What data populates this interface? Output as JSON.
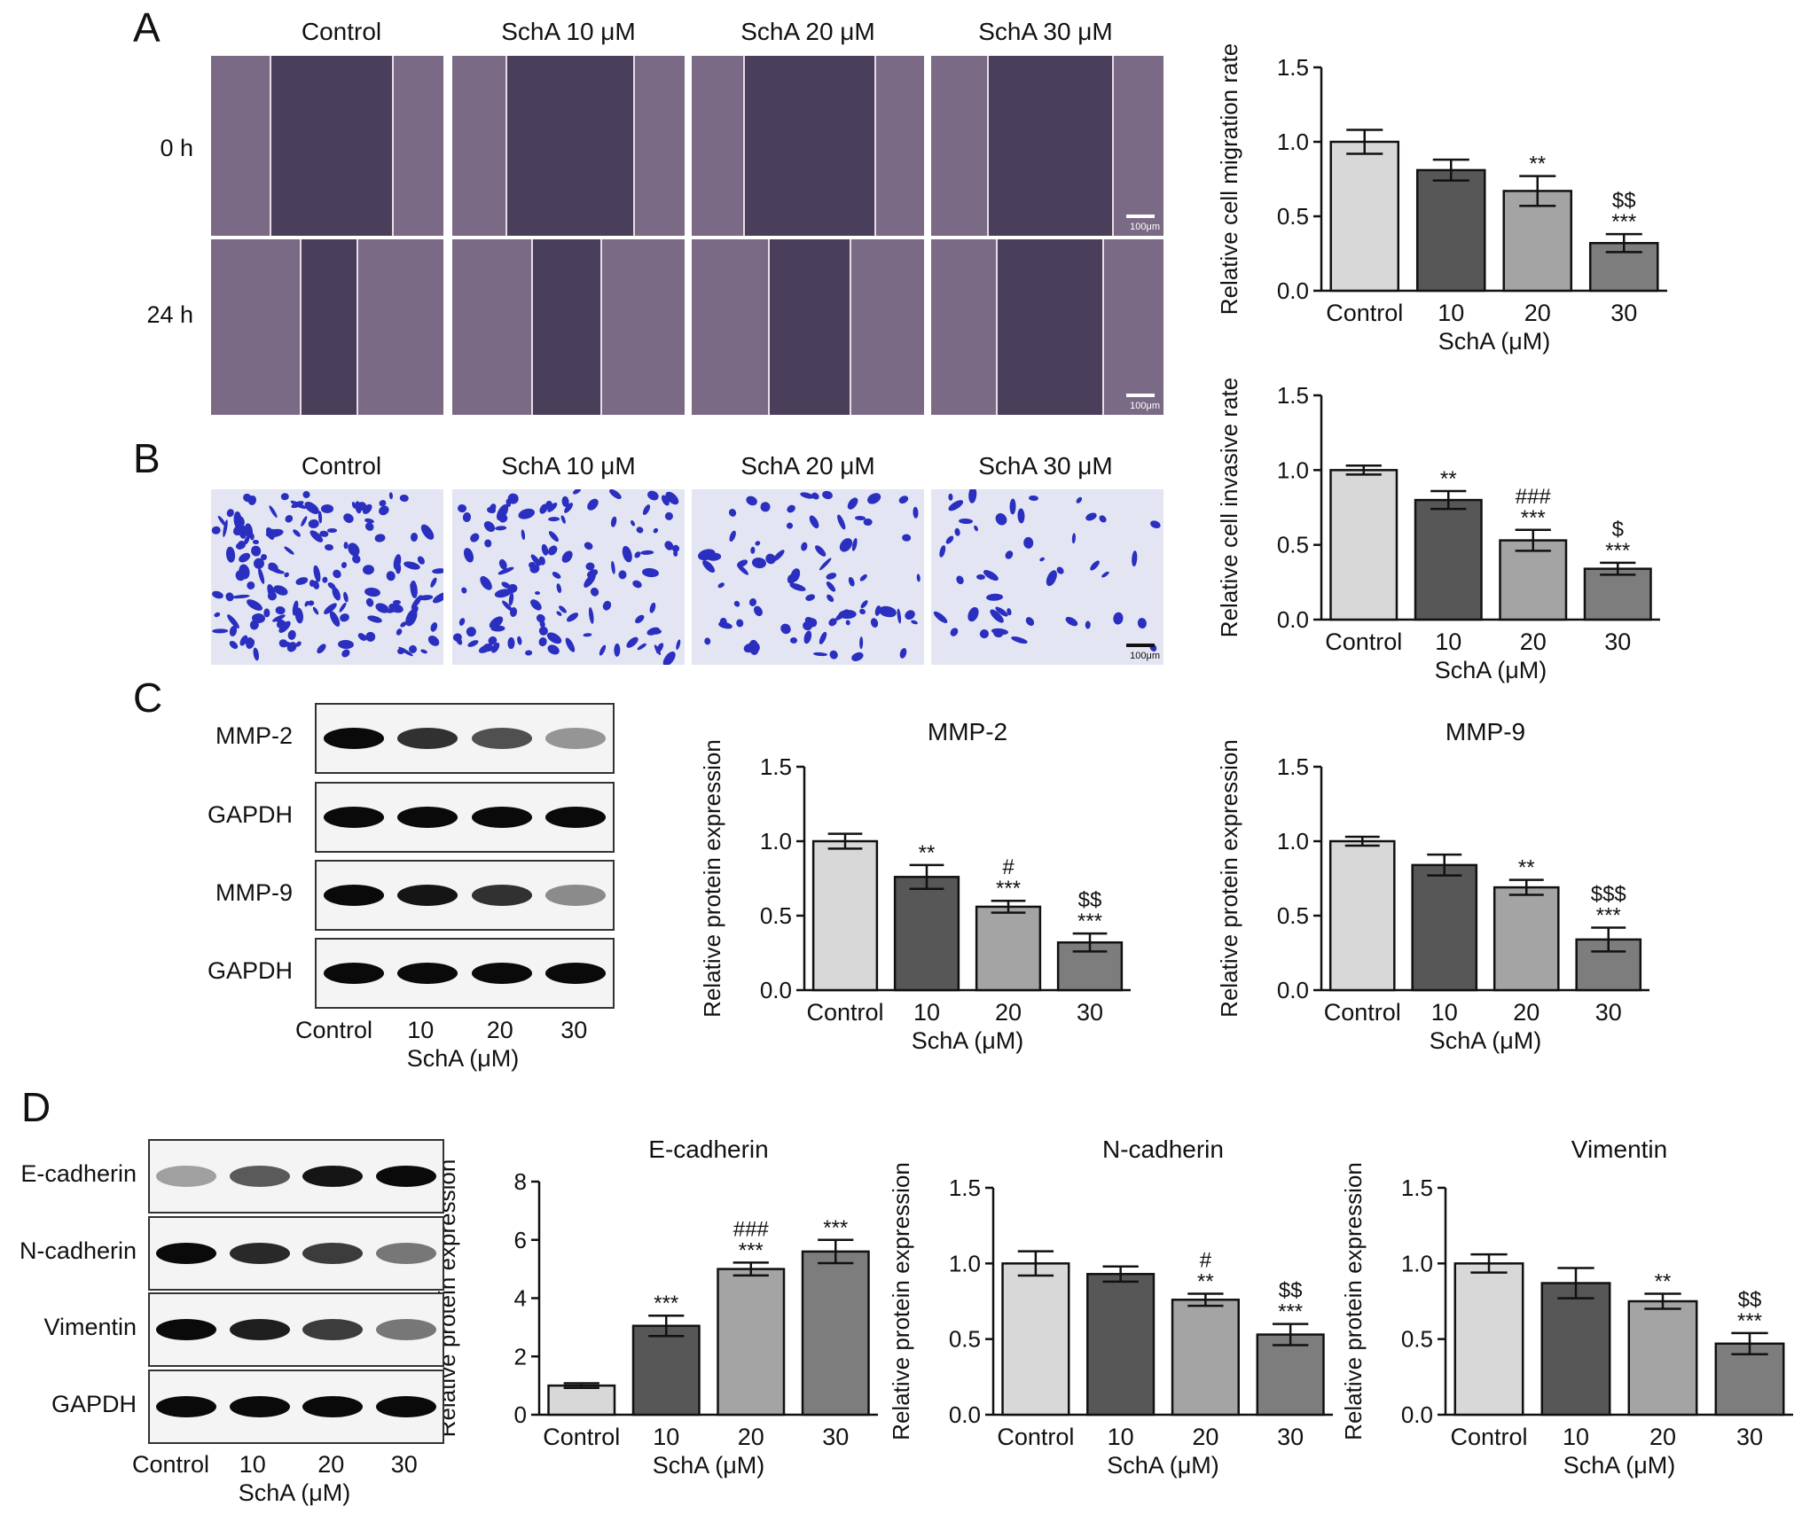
{
  "colors": {
    "control": "#d8d8d8",
    "dose10": "#575757",
    "dose20": "#a4a4a4",
    "dose30": "#7d7d7d",
    "wound_gap": "#4a3f5a",
    "wound_cells": "#7a6a86",
    "transwell_bg": "#e3e6f2",
    "transwell_cells": "#2a2fc0"
  },
  "panels": {
    "A": {
      "letter": "A",
      "columns": [
        "Control",
        "SchA 10 μM",
        "SchA 20 μM",
        "SchA 30 μM"
      ],
      "rows": [
        "0 h",
        "24 h"
      ],
      "scale_bar": "100μm"
    },
    "B": {
      "letter": "B",
      "columns": [
        "Control",
        "SchA 10 μM",
        "SchA 20 μM",
        "SchA 30 μM"
      ],
      "scale_bar": "100μm"
    },
    "C": {
      "letter": "C",
      "blot_rows": [
        "MMP-2",
        "GAPDH",
        "MMP-9",
        "GAPDH"
      ],
      "blot_band_intensity": [
        [
          1.0,
          0.8,
          0.65,
          0.3
        ],
        [
          1.0,
          1.0,
          1.0,
          1.0
        ],
        [
          1.0,
          0.95,
          0.8,
          0.35
        ],
        [
          1.0,
          1.0,
          1.0,
          1.0
        ]
      ],
      "lanes": [
        "Control",
        "10",
        "20",
        "30"
      ],
      "lane_axis_label": "SchA (μM)"
    },
    "D": {
      "letter": "D",
      "blot_rows": [
        "E-cadherin",
        "N-cadherin",
        "Vimentin",
        "GAPDH"
      ],
      "blot_band_intensity": [
        [
          0.25,
          0.6,
          0.95,
          1.0
        ],
        [
          1.0,
          0.85,
          0.75,
          0.45
        ],
        [
          1.0,
          0.9,
          0.75,
          0.45
        ],
        [
          1.0,
          1.0,
          1.0,
          1.0
        ]
      ],
      "lanes": [
        "Control",
        "10",
        "20",
        "30"
      ],
      "lane_axis_label": "SchA (μM)"
    }
  },
  "chart_data": [
    {
      "id": "migration",
      "type": "bar",
      "title": "",
      "xlabel": "SchA (μM)",
      "ylabel": "Relative cell migration rate",
      "categories": [
        "Control",
        "10",
        "20",
        "30"
      ],
      "values": [
        1.0,
        0.81,
        0.67,
        0.32
      ],
      "errors": [
        0.08,
        0.07,
        0.1,
        0.06
      ],
      "annotations": [
        [],
        [],
        [
          "**"
        ],
        [
          "$$",
          "***"
        ]
      ],
      "ylim": [
        0,
        1.5
      ],
      "yticks": [
        "0.0",
        "0.5",
        "1.0",
        "1.5"
      ]
    },
    {
      "id": "invasion",
      "type": "bar",
      "title": "",
      "xlabel": "SchA (μM)",
      "ylabel": "Relative cell invasive rate",
      "categories": [
        "Control",
        "10",
        "20",
        "30"
      ],
      "values": [
        1.0,
        0.8,
        0.53,
        0.34
      ],
      "errors": [
        0.03,
        0.06,
        0.07,
        0.04
      ],
      "annotations": [
        [],
        [
          "**"
        ],
        [
          "###",
          "***"
        ],
        [
          "$",
          "***"
        ]
      ],
      "ylim": [
        0,
        1.5
      ],
      "yticks": [
        "0.0",
        "0.5",
        "1.0",
        "1.5"
      ]
    },
    {
      "id": "mmp2",
      "type": "bar",
      "title": "MMP-2",
      "xlabel": "SchA (μM)",
      "ylabel": "Relative protein expression",
      "categories": [
        "Control",
        "10",
        "20",
        "30"
      ],
      "values": [
        1.0,
        0.76,
        0.56,
        0.32
      ],
      "errors": [
        0.05,
        0.08,
        0.04,
        0.06
      ],
      "annotations": [
        [],
        [
          "**"
        ],
        [
          "#",
          "***"
        ],
        [
          "$$",
          "***"
        ]
      ],
      "ylim": [
        0,
        1.5
      ],
      "yticks": [
        "0.0",
        "0.5",
        "1.0",
        "1.5"
      ]
    },
    {
      "id": "mmp9",
      "type": "bar",
      "title": "MMP-9",
      "xlabel": "SchA (μM)",
      "ylabel": "Relative protein expression",
      "categories": [
        "Control",
        "10",
        "20",
        "30"
      ],
      "values": [
        1.0,
        0.84,
        0.69,
        0.34
      ],
      "errors": [
        0.03,
        0.07,
        0.05,
        0.08
      ],
      "annotations": [
        [],
        [],
        [
          "**"
        ],
        [
          "$$$",
          "***"
        ]
      ],
      "ylim": [
        0,
        1.5
      ],
      "yticks": [
        "0.0",
        "0.5",
        "1.0",
        "1.5"
      ]
    },
    {
      "id": "ecad",
      "type": "bar",
      "title": "E-cadherin",
      "xlabel": "SchA (μM)",
      "ylabel": "Relative protein expression",
      "categories": [
        "Control",
        "10",
        "20",
        "30"
      ],
      "values": [
        1.0,
        3.05,
        5.0,
        5.6
      ],
      "errors": [
        0.08,
        0.35,
        0.22,
        0.4
      ],
      "annotations": [
        [],
        [
          "***"
        ],
        [
          "###",
          "***"
        ],
        [
          "***"
        ]
      ],
      "ylim": [
        0,
        8
      ],
      "yticks": [
        "0",
        "2",
        "4",
        "6",
        "8"
      ]
    },
    {
      "id": "ncad",
      "type": "bar",
      "title": "N-cadherin",
      "xlabel": "SchA (μM)",
      "ylabel": "Relative protein expression",
      "categories": [
        "Control",
        "10",
        "20",
        "30"
      ],
      "values": [
        1.0,
        0.93,
        0.76,
        0.53
      ],
      "errors": [
        0.08,
        0.05,
        0.04,
        0.07
      ],
      "annotations": [
        [],
        [],
        [
          "#",
          "**"
        ],
        [
          "$$",
          "***"
        ]
      ],
      "ylim": [
        0,
        1.5
      ],
      "yticks": [
        "0.0",
        "0.5",
        "1.0",
        "1.5"
      ]
    },
    {
      "id": "vim",
      "type": "bar",
      "title": "Vimentin",
      "xlabel": "SchA (μM)",
      "ylabel": "Relative protein expression",
      "categories": [
        "Control",
        "10",
        "20",
        "30"
      ],
      "values": [
        1.0,
        0.87,
        0.75,
        0.47
      ],
      "errors": [
        0.06,
        0.1,
        0.05,
        0.07
      ],
      "annotations": [
        [],
        [],
        [
          "**"
        ],
        [
          "$$",
          "***"
        ]
      ],
      "ylim": [
        0,
        1.5
      ],
      "yticks": [
        "0.0",
        "0.5",
        "1.0",
        "1.5"
      ]
    }
  ]
}
